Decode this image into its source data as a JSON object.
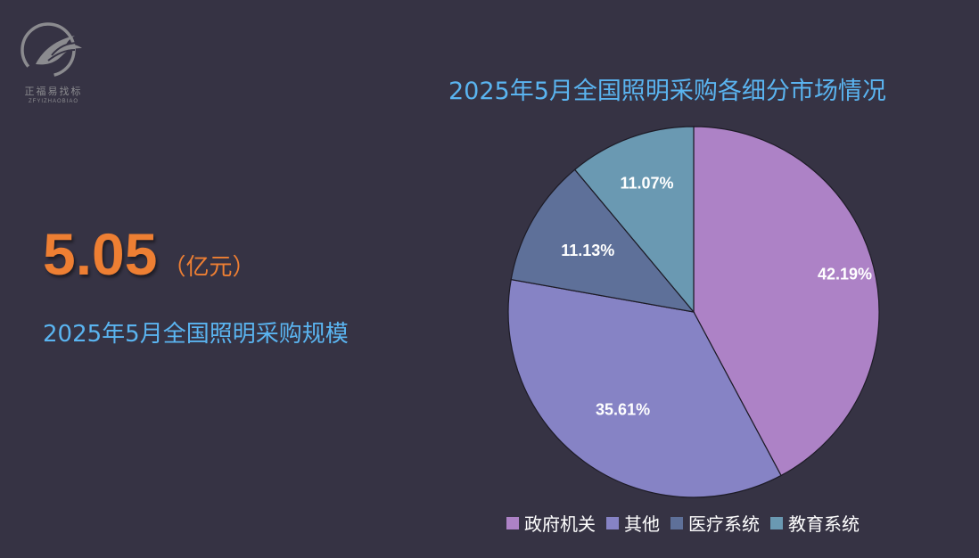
{
  "logo": {
    "name_cn": "正福易找标",
    "name_en": "ZFYIZHAOBIAO"
  },
  "kpi": {
    "value": "5.05",
    "unit": "（亿元）",
    "label": "2025年5月全国照明采购规模"
  },
  "colors": {
    "background": "#363344",
    "accent_orange": "#ee7f33",
    "accent_blue": "#5ab4f0"
  },
  "chart_data": {
    "type": "pie",
    "title": "2025年5月全国照明采购各细分市场情况",
    "legend_position": "bottom",
    "categories": [
      "政府机关",
      "其他",
      "医疗系统",
      "教育系统"
    ],
    "values": [
      42.19,
      35.61,
      11.13,
      11.07
    ],
    "labels": [
      "42.19%",
      "35.61%",
      "11.13%",
      "11.07%"
    ],
    "colors": [
      "#ad82c6",
      "#8683c5",
      "#5e7099",
      "#6a99b2"
    ]
  }
}
